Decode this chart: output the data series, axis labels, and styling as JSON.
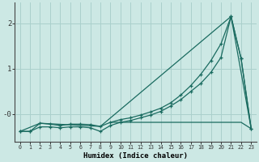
{
  "xlabel": "Humidex (Indice chaleur)",
  "bg_color": "#cce8e4",
  "grid_color": "#aad0cc",
  "line_color": "#1a6b60",
  "xlim": [
    -0.5,
    23.5
  ],
  "ylim": [
    -0.6,
    2.45
  ],
  "xticks": [
    0,
    1,
    2,
    3,
    4,
    5,
    6,
    7,
    8,
    9,
    10,
    11,
    12,
    13,
    14,
    15,
    16,
    17,
    18,
    19,
    20,
    21,
    22,
    23
  ],
  "yticks": [
    0.0,
    1.0,
    2.0
  ],
  "ytick_labels": [
    "-0",
    "1",
    "2"
  ],
  "line1_x": [
    0,
    1,
    2,
    3,
    4,
    5,
    6,
    7,
    8,
    9,
    10,
    11,
    12,
    13,
    14,
    15,
    16,
    17,
    18,
    19,
    20,
    21,
    22,
    23
  ],
  "line1_y": [
    -0.38,
    -0.38,
    -0.28,
    -0.28,
    -0.3,
    -0.28,
    -0.28,
    -0.3,
    -0.38,
    -0.25,
    -0.18,
    -0.14,
    -0.08,
    -0.02,
    0.06,
    0.18,
    0.32,
    0.5,
    0.68,
    0.92,
    1.25,
    2.15,
    1.22,
    -0.32
  ],
  "line2_x": [
    0,
    1,
    2,
    3,
    4,
    5,
    6,
    7,
    8,
    9,
    10,
    11,
    12,
    13,
    14,
    15,
    16,
    17,
    18,
    19,
    20,
    21,
    22,
    23
  ],
  "line2_y": [
    -0.38,
    -0.38,
    -0.2,
    -0.22,
    -0.25,
    -0.22,
    -0.22,
    -0.23,
    -0.27,
    -0.18,
    -0.12,
    -0.08,
    -0.02,
    0.05,
    0.13,
    0.25,
    0.42,
    0.63,
    0.88,
    1.18,
    1.55,
    2.15,
    1.22,
    -0.32
  ],
  "line3_x": [
    0,
    2,
    8,
    21,
    23
  ],
  "line3_y": [
    -0.38,
    -0.2,
    -0.27,
    2.15,
    -0.32
  ],
  "line4_x": [
    9,
    10,
    11,
    12,
    13,
    14,
    15,
    16,
    17,
    18,
    19,
    20,
    21,
    22,
    23
  ],
  "line4_y": [
    -0.18,
    -0.18,
    -0.18,
    -0.18,
    -0.18,
    -0.18,
    -0.18,
    -0.18,
    -0.18,
    -0.18,
    -0.18,
    -0.18,
    -0.18,
    -0.18,
    -0.32
  ]
}
